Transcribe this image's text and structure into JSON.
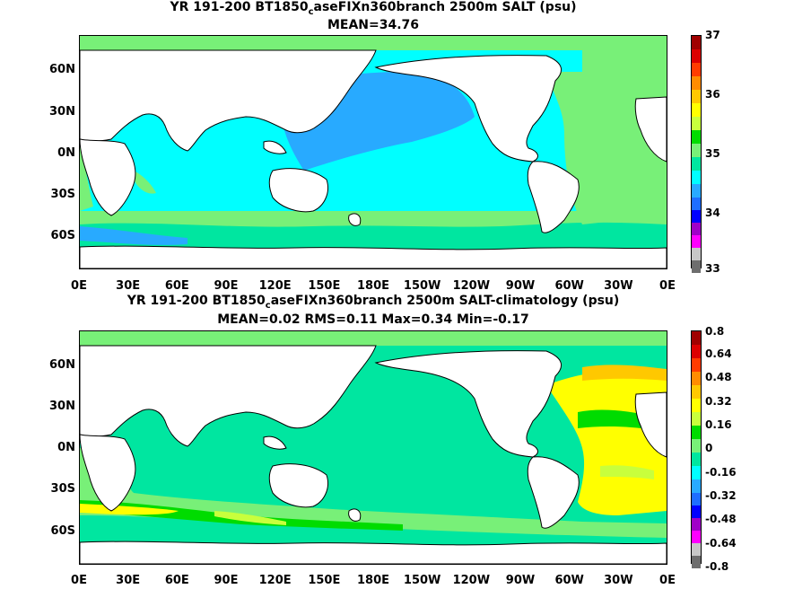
{
  "panels": [
    {
      "title": "YR 191-200 BT1850",
      "title_sub": "c",
      "title_rest": "aseFIXn360branch 2500m SALT (psu)",
      "subtitle": "MEAN=34.76",
      "colorbar_labels": [
        "37",
        "36",
        "35",
        "34",
        "33"
      ]
    },
    {
      "title": "YR 191-200 BT1850",
      "title_sub": "c",
      "title_rest": "aseFIXn360branch 2500m SALT-climatology (psu)",
      "subtitle": "MEAN=0.02   RMS=0.11   Max=0.34   Min=-0.17",
      "colorbar_labels": [
        "0.8",
        "0.64",
        "0.48",
        "0.32",
        "0.16",
        "0",
        "-0.16",
        "-0.32",
        "-0.48",
        "-0.64",
        "-0.8"
      ]
    }
  ],
  "lat_labels": [
    "60N",
    "30N",
    "0N",
    "30S",
    "60S"
  ],
  "lon_labels": [
    "0E",
    "30E",
    "60E",
    "90E",
    "120E",
    "150E",
    "180E",
    "150W",
    "120W",
    "90W",
    "60W",
    "30W",
    "0E"
  ],
  "colors": {
    "scale": [
      "#6e6e6e",
      "#c8c8c8",
      "#ff00ff",
      "#a000c8",
      "#0000ff",
      "#1e6eff",
      "#28aaff",
      "#00ffff",
      "#00e6a0",
      "#78f078",
      "#00dc00",
      "#c8ff3c",
      "#ffff00",
      "#ffc800",
      "#ff8c00",
      "#ff3c00",
      "#dc0000",
      "#a00000"
    ]
  }
}
